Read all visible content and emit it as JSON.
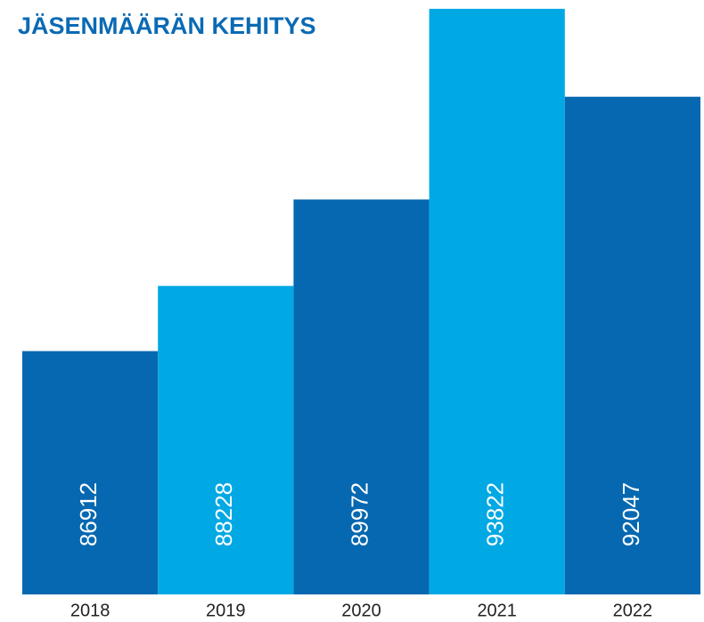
{
  "chart_data": {
    "type": "bar",
    "title": "JÄSENMÄÄRÄN KEHITYS",
    "categories": [
      "2018",
      "2019",
      "2020",
      "2021",
      "2022"
    ],
    "values": [
      86912,
      88228,
      89972,
      93822,
      92047
    ],
    "colors": [
      "#0668b0",
      "#00a8e4",
      "#0668b0",
      "#00a8e4",
      "#0668b0"
    ],
    "ylim": [
      82000,
      94000
    ]
  }
}
